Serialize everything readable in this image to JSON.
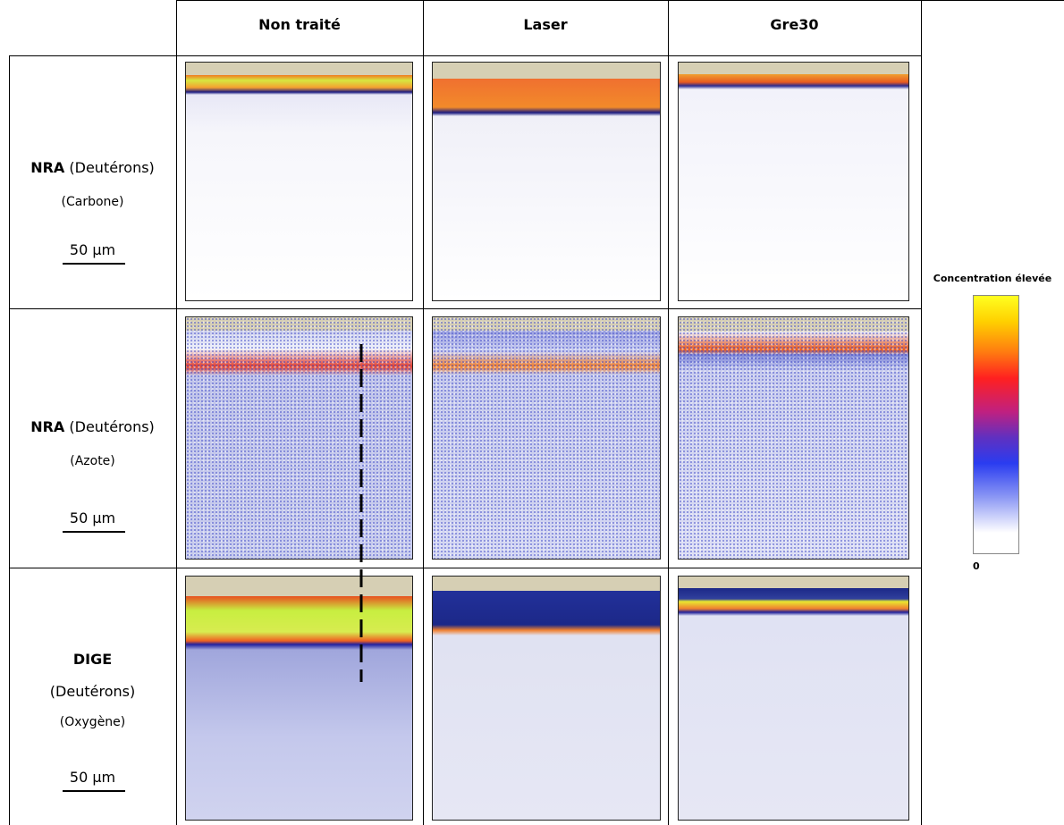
{
  "header": {
    "columns": [
      "Non traité",
      "Laser",
      "Gre30"
    ]
  },
  "rows": [
    {
      "method": "NRA",
      "beam": "(Deutérons)",
      "element": "(Carbone)",
      "scale": "50 µm"
    },
    {
      "method": "NRA",
      "beam": "(Deutérons)",
      "element": "(Azote)",
      "scale": "50 µm"
    },
    {
      "method": "DIGE",
      "beam": "(Deutérons)",
      "element": "(Oxygène)",
      "scale": "50 µm"
    }
  ],
  "colorbar": {
    "high": "Concentration élevée",
    "low": "0"
  }
}
